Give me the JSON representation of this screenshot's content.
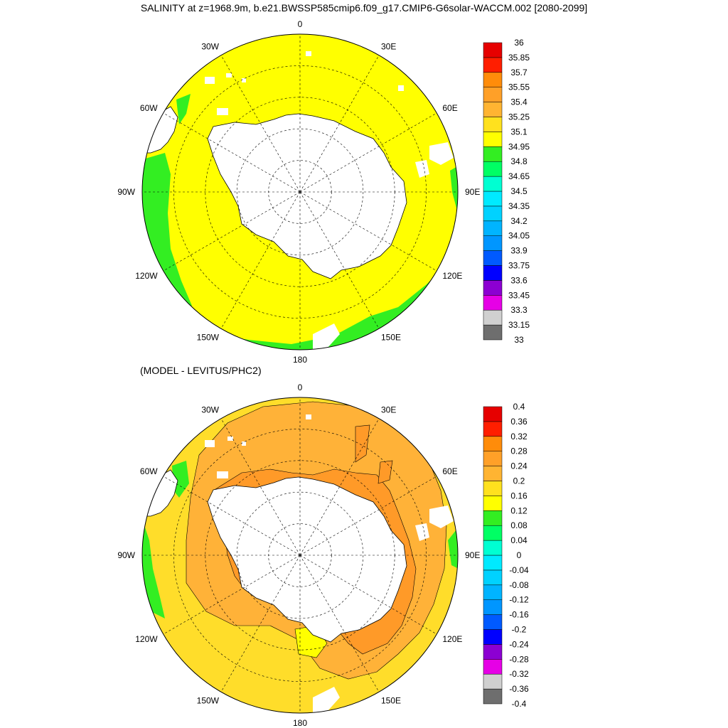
{
  "header": {
    "title": "SALINITY at z=1968.9m, b.e21.BWSSP585cmip6.f09_g17.CMIP6-G6solar-WACCM.002 [2080-2099]"
  },
  "diff_panel": {
    "title": "(MODEL - LEVITUS/PHC2)"
  },
  "longitude_labels": [
    "0",
    "30E",
    "60E",
    "90E",
    "120E",
    "150E",
    "180",
    "150W",
    "120W",
    "90W",
    "60W",
    "30W"
  ],
  "colors": {
    "land": "#ffffff",
    "coast": "#000000",
    "grid": "#000000",
    "salinity_ocean": "#ffff00",
    "salinity_coastal": "#33ee22",
    "diff_yellow": "#ffdd2a",
    "diff_orange_light": "#ffb238",
    "diff_orange": "#ff9a28",
    "diff_green": "#33ee22"
  },
  "colorbars": [
    {
      "name": "salinity",
      "colors": [
        "#6e6e6e",
        "#d0d0d0",
        "#e600e6",
        "#8c00d2",
        "#0000ff",
        "#005aff",
        "#0096ff",
        "#00b4ff",
        "#00d2ff",
        "#00eaff",
        "#00ffd2",
        "#00ff64",
        "#33ee22",
        "#ffff00",
        "#ffe11e",
        "#ffb432",
        "#ffa028",
        "#ff8c0a",
        "#ff1e00",
        "#e60000",
        "#c80000"
      ],
      "labels": [
        "33",
        "33.15",
        "33.3",
        "33.45",
        "33.6",
        "33.75",
        "33.9",
        "34.05",
        "34.2",
        "34.35",
        "34.5",
        "34.65",
        "34.8",
        "34.95",
        "35.1",
        "35.25",
        "35.4",
        "35.55",
        "35.7",
        "35.85",
        "36"
      ]
    },
    {
      "name": "difference",
      "colors": [
        "#6e6e6e",
        "#d0d0d0",
        "#e600e6",
        "#8c00d2",
        "#0000ff",
        "#005aff",
        "#0096ff",
        "#00b4ff",
        "#00d2ff",
        "#00eaff",
        "#00ffd2",
        "#00ff64",
        "#33ee22",
        "#ffff00",
        "#ffe11e",
        "#ffb432",
        "#ffa028",
        "#ff8c0a",
        "#ff1e00",
        "#e60000",
        "#c80000"
      ],
      "labels": [
        "-0.4",
        "-0.36",
        "-0.32",
        "-0.28",
        "-0.24",
        "-0.2",
        "-0.16",
        "-0.12",
        "-0.08",
        "-0.04",
        "0",
        "0.04",
        "0.08",
        "0.12",
        "0.16",
        "0.2",
        "0.24",
        "0.28",
        "0.32",
        "0.36",
        "0.4"
      ]
    }
  ]
}
